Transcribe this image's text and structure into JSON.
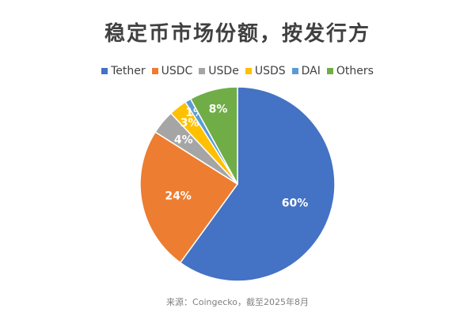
{
  "chart_data": {
    "type": "pie",
    "title": "稳定币市场份额，按发行方",
    "categories": [
      "Tether",
      "USDC",
      "USDe",
      "USDS",
      "DAI",
      "Others"
    ],
    "values": [
      60,
      24,
      4,
      3,
      1,
      8
    ],
    "data_labels": [
      "60%",
      "24%",
      "4%",
      "3%",
      "1%",
      "8%"
    ],
    "colors": [
      "#4472C4",
      "#ED7D31",
      "#A5A5A5",
      "#FFC000",
      "#5B9BD5",
      "#70AD47"
    ],
    "legend_position": "top",
    "source": "来源：Coingecko，截至2025年8月"
  }
}
